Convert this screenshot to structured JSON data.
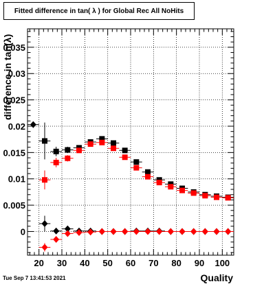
{
  "chart_data": {
    "type": "scatter",
    "title": "Fitted difference in tan( λ ) for Global Rec All NoHits",
    "xlabel": "Quality",
    "ylabel": "difference in tan(λ)",
    "xlim": [
      15,
      105
    ],
    "ylim": [
      -0.0045,
      0.0385
    ],
    "x_ticks": [
      20,
      30,
      40,
      50,
      60,
      70,
      80,
      90,
      100
    ],
    "y_ticks": [
      0,
      0.005,
      0.01,
      0.015,
      0.02,
      0.025,
      0.03,
      0.035
    ],
    "y_tick_labels": [
      "0",
      "0.005",
      "0.01",
      "0.015",
      "0.02",
      "0.025",
      "0.03",
      "0.035"
    ],
    "grid": true,
    "series": [
      {
        "marker": "square",
        "color": "#000000",
        "points": [
          {
            "x": 22.5,
            "y": 0.0172,
            "yerr": 0.0035
          },
          {
            "x": 27.5,
            "y": 0.0152,
            "yerr": 0.0009
          },
          {
            "x": 32.5,
            "y": 0.0155,
            "yerr": 0.0006
          },
          {
            "x": 37.5,
            "y": 0.0159,
            "yerr": 0.0004
          },
          {
            "x": 42.5,
            "y": 0.017,
            "yerr": 0.0004
          },
          {
            "x": 47.5,
            "y": 0.0176,
            "yerr": 0.0004
          },
          {
            "x": 52.5,
            "y": 0.0168,
            "yerr": 0.0004
          },
          {
            "x": 57.5,
            "y": 0.0154,
            "yerr": 0.0004
          },
          {
            "x": 62.5,
            "y": 0.0132,
            "yerr": 0.0004
          },
          {
            "x": 67.5,
            "y": 0.0113,
            "yerr": 0.0004
          },
          {
            "x": 72.5,
            "y": 0.0098,
            "yerr": 0.0003
          },
          {
            "x": 77.5,
            "y": 0.009,
            "yerr": 0.0003
          },
          {
            "x": 82.5,
            "y": 0.0082,
            "yerr": 0.0003
          },
          {
            "x": 87.5,
            "y": 0.0075,
            "yerr": 0.0003
          },
          {
            "x": 92.5,
            "y": 0.007,
            "yerr": 0.0003
          },
          {
            "x": 97.5,
            "y": 0.0067,
            "yerr": 0.0003
          },
          {
            "x": 102.5,
            "y": 0.0065,
            "yerr": 0.0003
          }
        ]
      },
      {
        "marker": "square",
        "color": "#ff0000",
        "points": [
          {
            "x": 22.5,
            "y": 0.0098,
            "yerr": 0.0018
          },
          {
            "x": 27.5,
            "y": 0.0131,
            "yerr": 0.0009
          },
          {
            "x": 32.5,
            "y": 0.0139,
            "yerr": 0.0006
          },
          {
            "x": 37.5,
            "y": 0.0154,
            "yerr": 0.0004
          },
          {
            "x": 42.5,
            "y": 0.0166,
            "yerr": 0.0004
          },
          {
            "x": 47.5,
            "y": 0.0169,
            "yerr": 0.0004
          },
          {
            "x": 52.5,
            "y": 0.0158,
            "yerr": 0.0004
          },
          {
            "x": 57.5,
            "y": 0.0141,
            "yerr": 0.0004
          },
          {
            "x": 62.5,
            "y": 0.0121,
            "yerr": 0.0004
          },
          {
            "x": 67.5,
            "y": 0.0104,
            "yerr": 0.0004
          },
          {
            "x": 72.5,
            "y": 0.0093,
            "yerr": 0.0003
          },
          {
            "x": 77.5,
            "y": 0.0085,
            "yerr": 0.0003
          },
          {
            "x": 82.5,
            "y": 0.0078,
            "yerr": 0.0003
          },
          {
            "x": 87.5,
            "y": 0.0073,
            "yerr": 0.0003
          },
          {
            "x": 92.5,
            "y": 0.0068,
            "yerr": 0.0003
          },
          {
            "x": 97.5,
            "y": 0.0065,
            "yerr": 0.0003
          },
          {
            "x": 102.5,
            "y": 0.0064,
            "yerr": 0.0003
          }
        ]
      },
      {
        "marker": "diamond",
        "color": "#000000",
        "points": [
          {
            "x": 17.5,
            "y": 0.0203,
            "yerr": 0.0
          },
          {
            "x": 22.5,
            "y": 0.0015,
            "yerr": 0.0015
          },
          {
            "x": 27.5,
            "y": 0.0001,
            "yerr": 0.0004
          },
          {
            "x": 32.5,
            "y": 0.0005,
            "yerr": 0.0003
          },
          {
            "x": 37.5,
            "y": 0.0001,
            "yerr": 0.0002
          },
          {
            "x": 42.5,
            "y": 0.0001,
            "yerr": 0.0002
          },
          {
            "x": 47.5,
            "y": 0.0,
            "yerr": 0.0001
          },
          {
            "x": 52.5,
            "y": 0.0,
            "yerr": 0.0001
          },
          {
            "x": 57.5,
            "y": 0.0,
            "yerr": 0.0001
          },
          {
            "x": 62.5,
            "y": 0.0001,
            "yerr": 0.0001
          },
          {
            "x": 67.5,
            "y": 0.0001,
            "yerr": 0.0001
          },
          {
            "x": 72.5,
            "y": 0.0001,
            "yerr": 0.0001
          },
          {
            "x": 77.5,
            "y": 0.0,
            "yerr": 0.0001
          },
          {
            "x": 82.5,
            "y": 0.0,
            "yerr": 0.0001
          },
          {
            "x": 87.5,
            "y": 0.0,
            "yerr": 0.0001
          },
          {
            "x": 92.5,
            "y": 0.0,
            "yerr": 0.0001
          },
          {
            "x": 97.5,
            "y": 0.0,
            "yerr": 0.0001
          },
          {
            "x": 102.5,
            "y": 0.0,
            "yerr": 0.0001
          }
        ]
      },
      {
        "marker": "diamond",
        "color": "#ff0000",
        "points": [
          {
            "x": 22.5,
            "y": -0.003,
            "yerr": 0.0008
          },
          {
            "x": 27.5,
            "y": -0.0015,
            "yerr": 0.0005
          },
          {
            "x": 32.5,
            "y": -0.0004,
            "yerr": 0.0003
          },
          {
            "x": 37.5,
            "y": -0.0002,
            "yerr": 0.0002
          },
          {
            "x": 42.5,
            "y": -0.0001,
            "yerr": 0.0001
          },
          {
            "x": 47.5,
            "y": 0.0,
            "yerr": 0.0001
          },
          {
            "x": 52.5,
            "y": 0.0,
            "yerr": 0.0001
          },
          {
            "x": 57.5,
            "y": 0.0,
            "yerr": 0.0001
          },
          {
            "x": 62.5,
            "y": 0.0,
            "yerr": 0.0001
          },
          {
            "x": 67.5,
            "y": 0.0,
            "yerr": 0.0001
          },
          {
            "x": 72.5,
            "y": 0.0,
            "yerr": 0.0001
          },
          {
            "x": 77.5,
            "y": 0.0,
            "yerr": 0.0001
          },
          {
            "x": 82.5,
            "y": 0.0,
            "yerr": 0.0001
          },
          {
            "x": 87.5,
            "y": 0.0,
            "yerr": 0.0001
          },
          {
            "x": 92.5,
            "y": 0.0,
            "yerr": 0.0001
          },
          {
            "x": 97.5,
            "y": 0.0,
            "yerr": 0.0001
          },
          {
            "x": 102.5,
            "y": 0.0,
            "yerr": 0.0001
          }
        ]
      }
    ]
  },
  "footer": {
    "timestamp": "Tue Sep  7 13:41:53 2021"
  }
}
